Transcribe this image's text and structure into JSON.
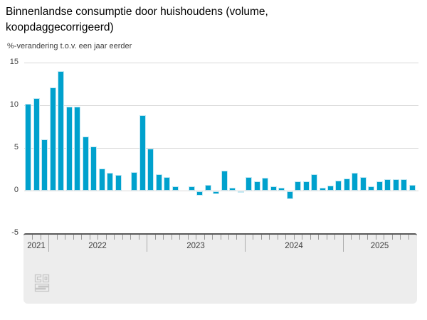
{
  "title": "Binnenlandse consumptie door huishoudens (volume, koopdaggecorrigeerd)",
  "subtitle": "%-verandering t.o.v. een jaar eerder",
  "colors": {
    "bar": "#00a1cd",
    "bar_border": "#c3e8f3",
    "grid": "#d9d9d9",
    "navigator_bg": "#ededed",
    "navigator_top_border": "#595959",
    "tick": "#9a9a9a",
    "text": "#3f3f3f",
    "logo": "#c6c6c6"
  },
  "chart_data": {
    "type": "bar",
    "title": "Binnenlandse consumptie door huishoudens (volume, koopdaggecorrigeerd)",
    "subtitle": "%-verandering t.o.v. een jaar eerder",
    "ylabel": "%-verandering t.o.v. een jaar eerder",
    "xlabel": "",
    "unit": "%",
    "ylim": [
      -5,
      15
    ],
    "yticks": [
      15,
      10,
      5,
      0,
      -5
    ],
    "grid": true,
    "legend": "none",
    "categories": [
      "2021-10",
      "2021-11",
      "2021-12",
      "2022-01",
      "2022-02",
      "2022-03",
      "2022-04",
      "2022-05",
      "2022-06",
      "2022-07",
      "2022-08",
      "2022-09",
      "2022-10",
      "2022-11",
      "2022-12",
      "2023-01",
      "2023-02",
      "2023-03",
      "2023-04",
      "2023-05",
      "2023-06",
      "2023-07",
      "2023-08",
      "2023-09",
      "2023-10",
      "2023-11",
      "2023-12",
      "2024-01",
      "2024-02",
      "2024-03",
      "2024-04",
      "2024-05",
      "2024-06",
      "2024-07",
      "2024-08",
      "2024-09",
      "2024-10",
      "2024-11",
      "2024-12",
      "2025-01",
      "2025-02",
      "2025-03",
      "2025-04",
      "2025-05",
      "2025-06",
      "2025-07",
      "2025-08",
      "2025-09"
    ],
    "values": [
      10.2,
      10.8,
      6.0,
      12.1,
      14.0,
      9.8,
      9.8,
      6.3,
      5.2,
      2.6,
      2.1,
      1.8,
      0.0,
      2.2,
      8.8,
      4.9,
      1.9,
      1.6,
      0.5,
      0.0,
      0.5,
      -0.5,
      0.7,
      -0.3,
      2.3,
      0.3,
      -0.2,
      1.6,
      1.1,
      1.5,
      0.5,
      0.3,
      -0.9,
      1.1,
      1.1,
      1.9,
      0.3,
      0.6,
      1.2,
      1.4,
      2.1,
      1.6,
      0.5,
      1.1,
      1.3,
      1.3,
      1.3,
      0.7
    ],
    "x_axis_years": [
      {
        "label": "2021",
        "months": 3
      },
      {
        "label": "2022",
        "months": 12
      },
      {
        "label": "2023",
        "months": 12
      },
      {
        "label": "2024",
        "months": 12
      },
      {
        "label": "2025",
        "months": 9
      }
    ]
  }
}
